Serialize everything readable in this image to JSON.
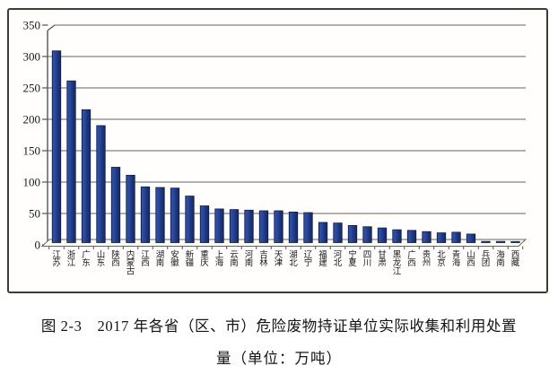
{
  "figure": {
    "caption_line1": "图 2-3　2017 年各省（区、市）危险废物持证单位实际收集和利用处置",
    "caption_line2": "量（单位：万吨）"
  },
  "chart_data": {
    "type": "bar",
    "title": "",
    "xlabel": "",
    "ylabel": "",
    "unit": "万吨",
    "categories": [
      "江苏",
      "浙江",
      "广东",
      "山东",
      "陕西",
      "内蒙古",
      "江西",
      "湖南",
      "安徽",
      "新疆",
      "重庆",
      "上海",
      "云南",
      "河南",
      "吉林",
      "天津",
      "湖北",
      "辽宁",
      "福建",
      "河北",
      "宁夏",
      "四川",
      "甘肃",
      "黑龙江",
      "广西",
      "贵州",
      "北京",
      "青海",
      "山西",
      "兵团",
      "海南",
      "西藏"
    ],
    "values": [
      313,
      264,
      217,
      191,
      123,
      110,
      91,
      90,
      89,
      76,
      60,
      55,
      54,
      53,
      52,
      52,
      50,
      49,
      33,
      32,
      28,
      26,
      24,
      21,
      20,
      18,
      16,
      17,
      14,
      2,
      2,
      1
    ],
    "ylim": [
      0,
      350
    ],
    "yticks": [
      0,
      50,
      100,
      150,
      200,
      250,
      300,
      350
    ],
    "grid": true,
    "legend": "none",
    "colors": {
      "bar_fill": "#24459b",
      "bar_highlight": "#2e52ab",
      "bar_shadow": "#16295f",
      "bar_stroke": "#101f4a",
      "gridline": "#8a817a",
      "axis": "#57534d",
      "text": "#1a1a1a",
      "frame_border": "#3f3b35",
      "background": "#fffefc"
    }
  }
}
